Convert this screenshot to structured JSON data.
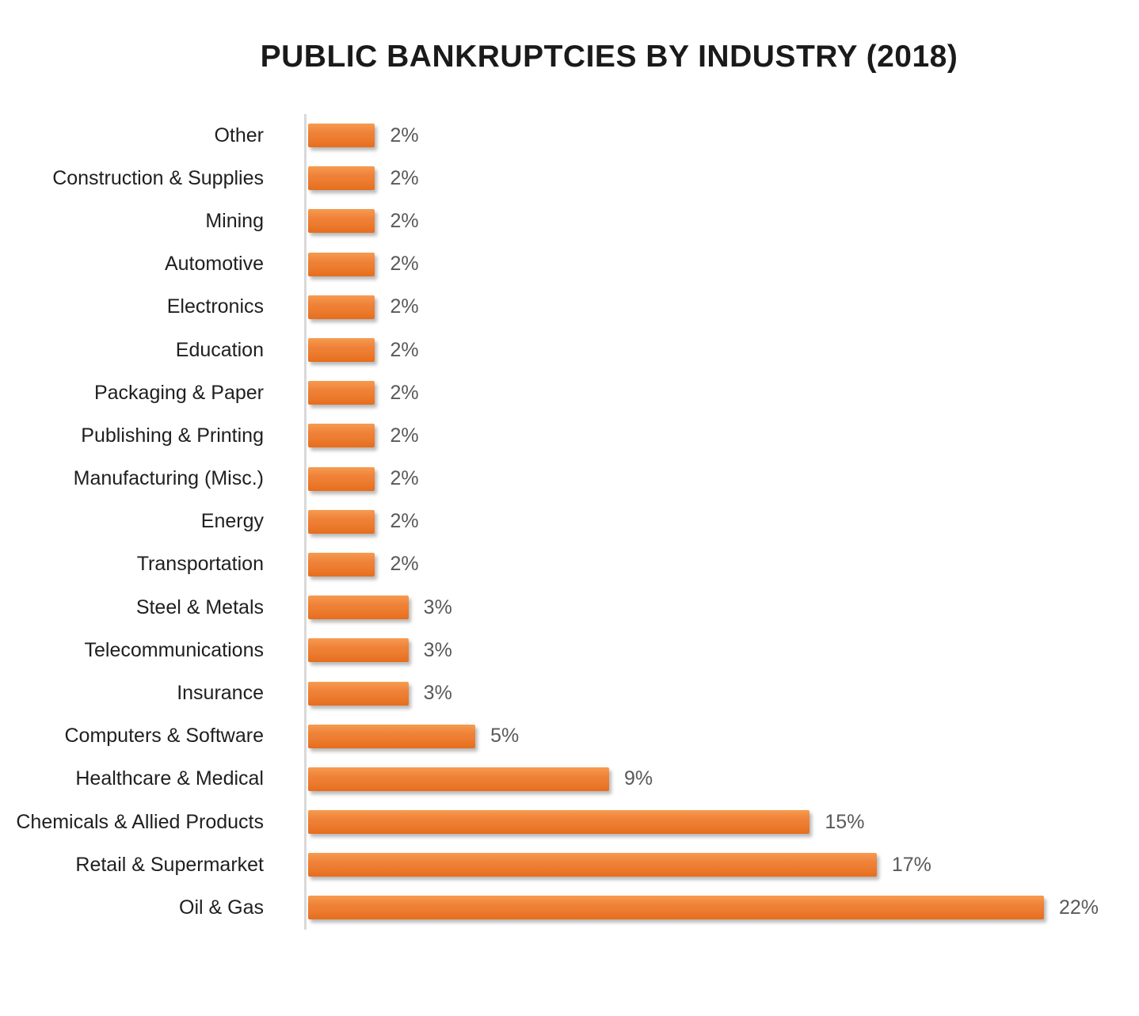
{
  "title": "PUBLIC BANKRUPTCIES BY INDUSTRY (2018)",
  "chart_data": {
    "type": "bar",
    "orientation": "horizontal",
    "title": "PUBLIC BANKRUPTCIES BY INDUSTRY (2018)",
    "categories": [
      "Other",
      "Construction & Supplies",
      "Mining",
      "Automotive",
      "Electronics",
      "Education",
      "Packaging & Paper",
      "Publishing & Printing",
      "Manufacturing (Misc.)",
      "Energy",
      "Transportation",
      "Steel & Metals",
      "Telecommunications",
      "Insurance",
      "Computers & Software",
      "Healthcare & Medical",
      "Chemicals & Allied Products",
      "Retail & Supermarket",
      "Oil & Gas"
    ],
    "values": [
      2,
      2,
      2,
      2,
      2,
      2,
      2,
      2,
      2,
      2,
      2,
      3,
      3,
      3,
      5,
      9,
      15,
      17,
      22
    ],
    "value_labels": [
      "2%",
      "2%",
      "2%",
      "2%",
      "2%",
      "2%",
      "2%",
      "2%",
      "2%",
      "2%",
      "2%",
      "3%",
      "3%",
      "3%",
      "5%",
      "9%",
      "15%",
      "17%",
      "22%"
    ],
    "xlabel": "",
    "ylabel": "",
    "xlim": [
      0,
      22
    ],
    "grid": false,
    "legend": false,
    "bar_color": "#ED7D31",
    "axis_line_color": "#D9D9D9",
    "category_label_color": "#1F1F1F",
    "value_label_color": "#595959",
    "title_color": "#1A1A1A",
    "background_color": "#FFFFFF"
  }
}
